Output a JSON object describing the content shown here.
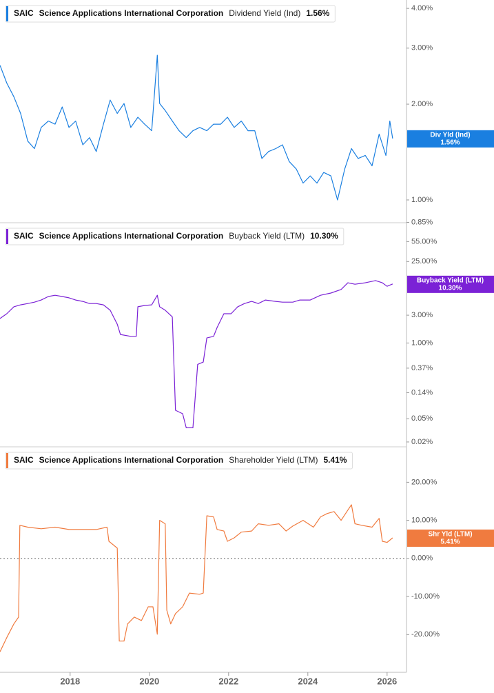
{
  "chart_data": [
    {
      "type": "line",
      "ticker": "SAIC",
      "company": "Science Applications International Corporation",
      "last_value_label": "1.56%",
      "badge_label": "Div Yld (Ind)",
      "log_scale": true,
      "ylim": [
        0.848,
        4.25
      ],
      "yticks": [
        {
          "value": 4,
          "label": "4.00%"
        },
        {
          "value": 3,
          "label": "3.00%"
        },
        {
          "value": 2,
          "label": "2.00%"
        },
        {
          "value": 1,
          "label": "1.00%"
        },
        {
          "value": 0.85,
          "label": "0.85%"
        }
      ],
      "xlim": [
        2016.23,
        2026.49
      ],
      "series": [
        {
          "name": "Dividend Yield (Ind)",
          "color": "#1a7fe0",
          "x": [
            2016.23,
            2016.4,
            2016.58,
            2016.75,
            2016.93,
            2017.1,
            2017.27,
            2017.45,
            2017.62,
            2017.8,
            2017.97,
            2018.14,
            2018.32,
            2018.49,
            2018.66,
            2018.84,
            2019.01,
            2019.19,
            2019.36,
            2019.53,
            2019.71,
            2019.88,
            2020.06,
            2020.2,
            2020.26,
            2020.4,
            2020.58,
            2020.75,
            2020.93,
            2021.1,
            2021.27,
            2021.45,
            2021.62,
            2021.8,
            2021.97,
            2022.14,
            2022.32,
            2022.49,
            2022.66,
            2022.84,
            2023.01,
            2023.19,
            2023.36,
            2023.53,
            2023.71,
            2023.88,
            2024.06,
            2024.23,
            2024.4,
            2024.58,
            2024.75,
            2024.93,
            2025.1,
            2025.27,
            2025.45,
            2025.62,
            2025.8,
            2025.97,
            2026.07,
            2026.14
          ],
          "values": [
            2.65,
            2.33,
            2.11,
            1.87,
            1.53,
            1.45,
            1.69,
            1.77,
            1.73,
            1.96,
            1.69,
            1.77,
            1.49,
            1.57,
            1.42,
            1.73,
            2.06,
            1.87,
            2.01,
            1.69,
            1.82,
            1.73,
            1.65,
            2.85,
            2.01,
            1.91,
            1.77,
            1.65,
            1.57,
            1.65,
            1.69,
            1.65,
            1.73,
            1.73,
            1.82,
            1.69,
            1.77,
            1.65,
            1.65,
            1.35,
            1.42,
            1.45,
            1.49,
            1.32,
            1.25,
            1.13,
            1.19,
            1.13,
            1.22,
            1.19,
            1.0,
            1.25,
            1.45,
            1.35,
            1.38,
            1.28,
            1.61,
            1.38,
            1.77,
            1.56
          ]
        }
      ]
    },
    {
      "type": "line",
      "ticker": "SAIC",
      "company": "Science Applications International Corporation",
      "last_value_label": "10.30%",
      "badge_label": "Buyback Yield (LTM)",
      "log_scale": true,
      "ylim": [
        0.0165,
        116
      ],
      "yticks": [
        {
          "value": 55,
          "label": "55.00%"
        },
        {
          "value": 25,
          "label": "25.00%"
        },
        {
          "value": 3,
          "label": "3.00%"
        },
        {
          "value": 1,
          "label": "1.00%"
        },
        {
          "value": 0.37,
          "label": "0.37%"
        },
        {
          "value": 0.14,
          "label": "0.14%"
        },
        {
          "value": 0.05,
          "label": "0.05%"
        },
        {
          "value": 0.02,
          "label": "0.02%"
        }
      ],
      "xlim": [
        2016.23,
        2026.49
      ],
      "series": [
        {
          "name": "Buyback Yield (LTM)",
          "color": "#7b22d6",
          "x": [
            2016.23,
            2016.4,
            2016.58,
            2016.75,
            2016.93,
            2017.1,
            2017.27,
            2017.45,
            2017.62,
            2017.8,
            2017.97,
            2018.14,
            2018.32,
            2018.49,
            2018.66,
            2018.84,
            2019.01,
            2019.19,
            2019.27,
            2019.53,
            2019.67,
            2019.71,
            2019.88,
            2020.06,
            2020.2,
            2020.26,
            2020.4,
            2020.58,
            2020.66,
            2020.84,
            2020.93,
            2021.1,
            2021.22,
            2021.36,
            2021.45,
            2021.62,
            2021.71,
            2021.88,
            2022.06,
            2022.23,
            2022.4,
            2022.58,
            2022.75,
            2022.93,
            2023.19,
            2023.36,
            2023.62,
            2023.8,
            2024.06,
            2024.32,
            2024.58,
            2024.84,
            2025.01,
            2025.19,
            2025.45,
            2025.71,
            2025.88,
            2026.0,
            2026.14
          ],
          "values": [
            2.63,
            3.18,
            4.18,
            4.52,
            4.76,
            5.02,
            5.46,
            6.28,
            6.6,
            6.28,
            5.96,
            5.46,
            5.17,
            4.76,
            4.76,
            4.52,
            3.65,
            2.1,
            1.4,
            1.3,
            1.3,
            4.18,
            4.4,
            4.52,
            6.6,
            4.18,
            3.65,
            2.8,
            0.07,
            0.061,
            0.035,
            0.035,
            0.43,
            0.47,
            1.22,
            1.3,
            1.84,
            3.18,
            3.18,
            4.18,
            4.76,
            5.17,
            4.76,
            5.46,
            5.17,
            5.02,
            5.02,
            5.46,
            5.46,
            6.6,
            7.2,
            8.3,
            10.8,
            10.2,
            10.8,
            11.8,
            10.8,
            9.4,
            10.3
          ]
        }
      ]
    },
    {
      "type": "line",
      "ticker": "SAIC",
      "company": "Science Applications International Corporation",
      "last_value_label": "5.41%",
      "badge_label": "Shr Yld (LTM)",
      "log_scale": false,
      "ylim": [
        -29.9,
        29.3
      ],
      "reference_line": 0,
      "yticks": [
        {
          "value": 20,
          "label": "20.00%"
        },
        {
          "value": 10,
          "label": "10.00%"
        },
        {
          "value": 0,
          "label": "0.00%"
        },
        {
          "value": -10,
          "label": "-10.00%"
        },
        {
          "value": -20,
          "label": "-20.00%"
        }
      ],
      "xlim": [
        2016.23,
        2026.49
      ],
      "xticks": [
        2018,
        2020,
        2022,
        2024,
        2026
      ],
      "series": [
        {
          "name": "Shareholder Yield (LTM)",
          "color": "#f07b3f",
          "x": [
            2016.23,
            2016.4,
            2016.58,
            2016.7,
            2016.73,
            2016.93,
            2017.27,
            2017.62,
            2017.97,
            2018.32,
            2018.66,
            2018.93,
            2018.98,
            2019.19,
            2019.24,
            2019.36,
            2019.45,
            2019.62,
            2019.8,
            2019.97,
            2020.09,
            2020.2,
            2020.26,
            2020.4,
            2020.44,
            2020.54,
            2020.66,
            2020.84,
            2021.01,
            2021.27,
            2021.36,
            2021.45,
            2021.62,
            2021.71,
            2021.88,
            2021.97,
            2022.14,
            2022.32,
            2022.58,
            2022.75,
            2023.01,
            2023.27,
            2023.45,
            2023.62,
            2023.88,
            2024.14,
            2024.32,
            2024.49,
            2024.66,
            2024.84,
            2025.01,
            2025.1,
            2025.19,
            2025.36,
            2025.62,
            2025.8,
            2025.88,
            2026.0,
            2026.14
          ],
          "values": [
            -24.5,
            -20.8,
            -17.2,
            -15.4,
            8.7,
            8.2,
            7.8,
            8.2,
            7.6,
            7.6,
            7.6,
            8.2,
            4.5,
            2.7,
            -21.7,
            -21.7,
            -17.2,
            -15.4,
            -16.3,
            -12.7,
            -12.7,
            -19.9,
            10.0,
            9.1,
            -13.6,
            -17.2,
            -14.5,
            -12.7,
            -9.1,
            -9.4,
            -9.1,
            11.2,
            10.9,
            7.6,
            7.2,
            4.5,
            5.4,
            6.9,
            7.2,
            9.1,
            8.7,
            9.1,
            7.2,
            8.5,
            10.0,
            8.2,
            10.9,
            11.8,
            12.3,
            10.0,
            12.7,
            14.1,
            9.1,
            8.7,
            8.2,
            10.5,
            4.5,
            4.2,
            5.41
          ]
        }
      ]
    }
  ]
}
